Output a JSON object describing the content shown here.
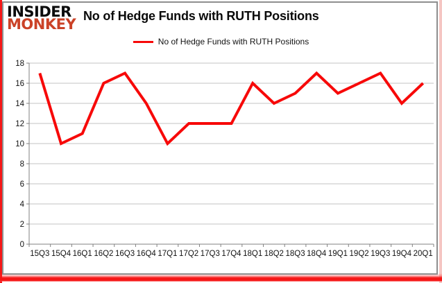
{
  "logo": {
    "line1": "INSIDER",
    "line2": "MONKEY"
  },
  "header": {
    "title": "No of Hedge Funds with RUTH Positions"
  },
  "legend": {
    "label": "No of Hedge Funds with RUTH Positions"
  },
  "colors": {
    "series": "#f70909",
    "logo_red": "#cb4227",
    "grid": "#c3c3c3",
    "axis": "#808080",
    "frame": "#8e8e8e",
    "edge_red": "#f51616",
    "edge_pink": "#f5c6c3",
    "text": "#111111"
  },
  "chart_data": {
    "type": "line",
    "title": "No of Hedge Funds with RUTH Positions",
    "categories": [
      "15Q3",
      "15Q4",
      "16Q1",
      "16Q2",
      "16Q3",
      "16Q4",
      "17Q1",
      "17Q2",
      "17Q3",
      "17Q4",
      "18Q1",
      "18Q2",
      "18Q3",
      "18Q4",
      "19Q1",
      "19Q2",
      "19Q3",
      "19Q4",
      "20Q1"
    ],
    "series": [
      {
        "name": "No of Hedge Funds with RUTH Positions",
        "values": [
          17,
          10,
          11,
          16,
          17,
          14,
          10,
          12,
          12,
          12,
          16,
          14,
          15,
          17,
          15,
          16,
          17,
          14,
          16
        ]
      }
    ],
    "ylim": [
      0,
      18
    ],
    "ytick_step": 2,
    "yticks": [
      0,
      2,
      4,
      6,
      8,
      10,
      12,
      14,
      16,
      18
    ],
    "grid": true,
    "legend_position": "top",
    "xlabel": "",
    "ylabel": ""
  }
}
